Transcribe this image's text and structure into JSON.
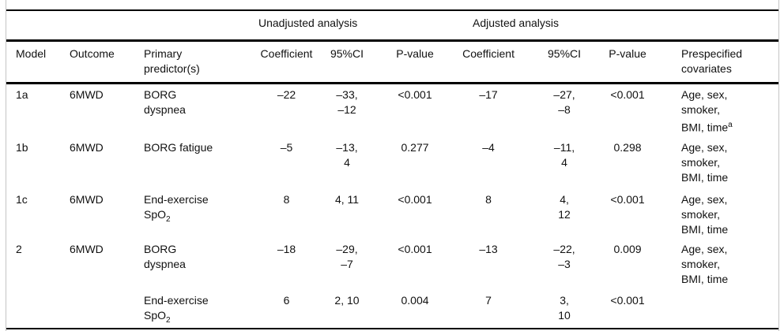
{
  "table": {
    "spanners": {
      "unadjusted": "Unadjusted analysis",
      "adjusted": "Adjusted analysis"
    },
    "header": {
      "model": "Model",
      "outcome": "Outcome",
      "predictor_html": "Primary<br>predictor(s)",
      "u_coefficient": "Coefficient",
      "u_ci": "95%CI",
      "u_pvalue": "P-value",
      "a_coefficient": "Coefficient",
      "a_ci": "95%CI",
      "a_pvalue": "P-value",
      "covariates_html": "Prespecified<br>covariates"
    },
    "rows": [
      {
        "model": "1a",
        "outcome": "6MWD",
        "predictor_html": "BORG<br>dyspnea",
        "u_coef": "–22",
        "u_ci_html": "–33,<br>–12",
        "u_p": "<0.001",
        "a_coef": "–17",
        "a_ci_html": "–27,<br>–8",
        "a_p": "<0.001",
        "cov_html": "Age, sex,<br>smoker,<br>BMI, time<sup>a</sup>"
      },
      {
        "model": "1b",
        "outcome": "6MWD",
        "predictor_html": "BORG fatigue",
        "u_coef": "–5",
        "u_ci_html": "–13,<br>4",
        "u_p": "0.277",
        "a_coef": "–4",
        "a_ci_html": "–11,<br>4",
        "a_p": "0.298",
        "cov_html": "Age, sex,<br>smoker,<br>BMI, time"
      },
      {
        "model": "1c",
        "outcome": "6MWD",
        "predictor_html": "End-exercise<br>SpO<sub>2</sub>",
        "u_coef": "8",
        "u_ci_html": "4, 11",
        "u_p": "<0.001",
        "a_coef": "8",
        "a_ci_html": "4,<br>12",
        "a_p": "<0.001",
        "cov_html": "Age, sex,<br>smoker,<br>BMI, time"
      },
      {
        "model": "2",
        "outcome": "6MWD",
        "predictor_html": "BORG<br>dyspnea",
        "u_coef": "–18",
        "u_ci_html": "–29,<br>–7",
        "u_p": "<0.001",
        "a_coef": "–13",
        "a_ci_html": "–22,<br>–3",
        "a_p": "0.009",
        "cov_html": "Age, sex,<br>smoker,<br>BMI, time"
      },
      {
        "model": "",
        "outcome": "",
        "predictor_html": "End-exercise<br>SpO<sub>2</sub>",
        "u_coef": "6",
        "u_ci_html": "2, 10",
        "u_p": "0.004",
        "a_coef": "7",
        "a_ci_html": "3,<br>10",
        "a_p": "<0.001",
        "cov_html": ""
      }
    ]
  }
}
